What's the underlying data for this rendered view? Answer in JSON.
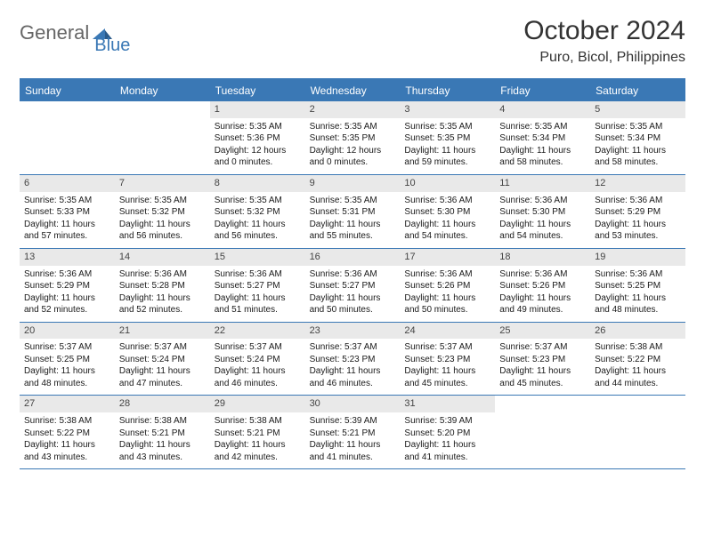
{
  "logo": {
    "text1": "General",
    "text2": "Blue"
  },
  "title": "October 2024",
  "location": "Puro, Bicol, Philippines",
  "colors": {
    "accent": "#3a78b5",
    "header_bg": "#3a78b5",
    "daynum_bg": "#e9e9e9"
  },
  "day_names": [
    "Sunday",
    "Monday",
    "Tuesday",
    "Wednesday",
    "Thursday",
    "Friday",
    "Saturday"
  ],
  "weeks": [
    [
      {
        "n": "",
        "empty": true
      },
      {
        "n": "",
        "empty": true
      },
      {
        "n": "1",
        "sr": "Sunrise: 5:35 AM",
        "ss": "Sunset: 5:36 PM",
        "dl": "Daylight: 12 hours and 0 minutes."
      },
      {
        "n": "2",
        "sr": "Sunrise: 5:35 AM",
        "ss": "Sunset: 5:35 PM",
        "dl": "Daylight: 12 hours and 0 minutes."
      },
      {
        "n": "3",
        "sr": "Sunrise: 5:35 AM",
        "ss": "Sunset: 5:35 PM",
        "dl": "Daylight: 11 hours and 59 minutes."
      },
      {
        "n": "4",
        "sr": "Sunrise: 5:35 AM",
        "ss": "Sunset: 5:34 PM",
        "dl": "Daylight: 11 hours and 58 minutes."
      },
      {
        "n": "5",
        "sr": "Sunrise: 5:35 AM",
        "ss": "Sunset: 5:34 PM",
        "dl": "Daylight: 11 hours and 58 minutes."
      }
    ],
    [
      {
        "n": "6",
        "sr": "Sunrise: 5:35 AM",
        "ss": "Sunset: 5:33 PM",
        "dl": "Daylight: 11 hours and 57 minutes."
      },
      {
        "n": "7",
        "sr": "Sunrise: 5:35 AM",
        "ss": "Sunset: 5:32 PM",
        "dl": "Daylight: 11 hours and 56 minutes."
      },
      {
        "n": "8",
        "sr": "Sunrise: 5:35 AM",
        "ss": "Sunset: 5:32 PM",
        "dl": "Daylight: 11 hours and 56 minutes."
      },
      {
        "n": "9",
        "sr": "Sunrise: 5:35 AM",
        "ss": "Sunset: 5:31 PM",
        "dl": "Daylight: 11 hours and 55 minutes."
      },
      {
        "n": "10",
        "sr": "Sunrise: 5:36 AM",
        "ss": "Sunset: 5:30 PM",
        "dl": "Daylight: 11 hours and 54 minutes."
      },
      {
        "n": "11",
        "sr": "Sunrise: 5:36 AM",
        "ss": "Sunset: 5:30 PM",
        "dl": "Daylight: 11 hours and 54 minutes."
      },
      {
        "n": "12",
        "sr": "Sunrise: 5:36 AM",
        "ss": "Sunset: 5:29 PM",
        "dl": "Daylight: 11 hours and 53 minutes."
      }
    ],
    [
      {
        "n": "13",
        "sr": "Sunrise: 5:36 AM",
        "ss": "Sunset: 5:29 PM",
        "dl": "Daylight: 11 hours and 52 minutes."
      },
      {
        "n": "14",
        "sr": "Sunrise: 5:36 AM",
        "ss": "Sunset: 5:28 PM",
        "dl": "Daylight: 11 hours and 52 minutes."
      },
      {
        "n": "15",
        "sr": "Sunrise: 5:36 AM",
        "ss": "Sunset: 5:27 PM",
        "dl": "Daylight: 11 hours and 51 minutes."
      },
      {
        "n": "16",
        "sr": "Sunrise: 5:36 AM",
        "ss": "Sunset: 5:27 PM",
        "dl": "Daylight: 11 hours and 50 minutes."
      },
      {
        "n": "17",
        "sr": "Sunrise: 5:36 AM",
        "ss": "Sunset: 5:26 PM",
        "dl": "Daylight: 11 hours and 50 minutes."
      },
      {
        "n": "18",
        "sr": "Sunrise: 5:36 AM",
        "ss": "Sunset: 5:26 PM",
        "dl": "Daylight: 11 hours and 49 minutes."
      },
      {
        "n": "19",
        "sr": "Sunrise: 5:36 AM",
        "ss": "Sunset: 5:25 PM",
        "dl": "Daylight: 11 hours and 48 minutes."
      }
    ],
    [
      {
        "n": "20",
        "sr": "Sunrise: 5:37 AM",
        "ss": "Sunset: 5:25 PM",
        "dl": "Daylight: 11 hours and 48 minutes."
      },
      {
        "n": "21",
        "sr": "Sunrise: 5:37 AM",
        "ss": "Sunset: 5:24 PM",
        "dl": "Daylight: 11 hours and 47 minutes."
      },
      {
        "n": "22",
        "sr": "Sunrise: 5:37 AM",
        "ss": "Sunset: 5:24 PM",
        "dl": "Daylight: 11 hours and 46 minutes."
      },
      {
        "n": "23",
        "sr": "Sunrise: 5:37 AM",
        "ss": "Sunset: 5:23 PM",
        "dl": "Daylight: 11 hours and 46 minutes."
      },
      {
        "n": "24",
        "sr": "Sunrise: 5:37 AM",
        "ss": "Sunset: 5:23 PM",
        "dl": "Daylight: 11 hours and 45 minutes."
      },
      {
        "n": "25",
        "sr": "Sunrise: 5:37 AM",
        "ss": "Sunset: 5:23 PM",
        "dl": "Daylight: 11 hours and 45 minutes."
      },
      {
        "n": "26",
        "sr": "Sunrise: 5:38 AM",
        "ss": "Sunset: 5:22 PM",
        "dl": "Daylight: 11 hours and 44 minutes."
      }
    ],
    [
      {
        "n": "27",
        "sr": "Sunrise: 5:38 AM",
        "ss": "Sunset: 5:22 PM",
        "dl": "Daylight: 11 hours and 43 minutes."
      },
      {
        "n": "28",
        "sr": "Sunrise: 5:38 AM",
        "ss": "Sunset: 5:21 PM",
        "dl": "Daylight: 11 hours and 43 minutes."
      },
      {
        "n": "29",
        "sr": "Sunrise: 5:38 AM",
        "ss": "Sunset: 5:21 PM",
        "dl": "Daylight: 11 hours and 42 minutes."
      },
      {
        "n": "30",
        "sr": "Sunrise: 5:39 AM",
        "ss": "Sunset: 5:21 PM",
        "dl": "Daylight: 11 hours and 41 minutes."
      },
      {
        "n": "31",
        "sr": "Sunrise: 5:39 AM",
        "ss": "Sunset: 5:20 PM",
        "dl": "Daylight: 11 hours and 41 minutes."
      },
      {
        "n": "",
        "empty": true
      },
      {
        "n": "",
        "empty": true
      }
    ]
  ]
}
